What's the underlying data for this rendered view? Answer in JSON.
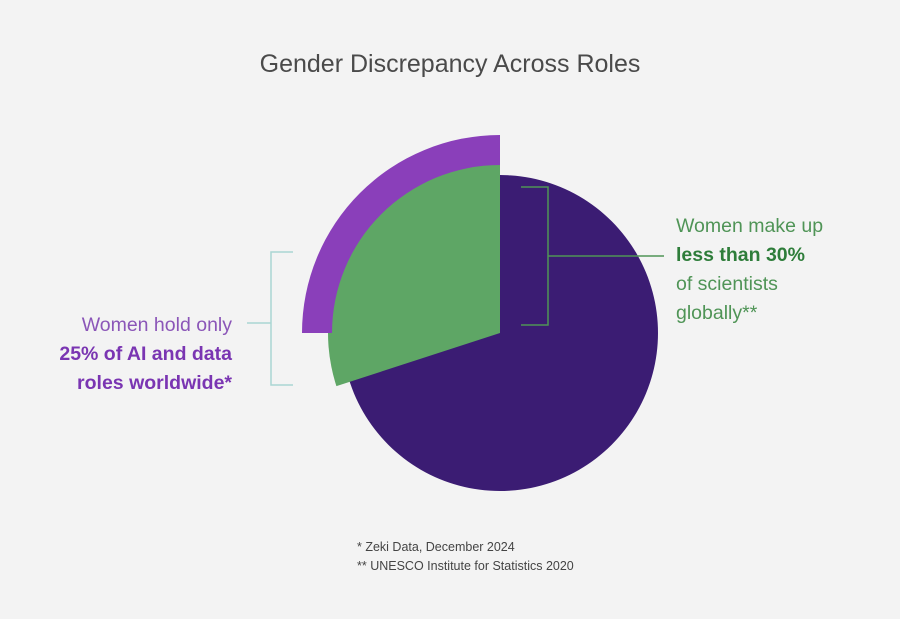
{
  "title": "Gender Discrepancy Across Roles",
  "colors": {
    "background": "#f3f3f3",
    "majority_segment": "#3b1c73",
    "women_scientists": "#5ea665",
    "women_ai_data": "#8a3fba",
    "bracket_left": "#a9d6d3",
    "bracket_right": "#4f9456"
  },
  "annotations": {
    "left": {
      "line1": "Women hold only",
      "line2": "25% of AI and data",
      "line3": "roles worldwide*"
    },
    "right": {
      "line1": "Women make up",
      "line2": "less than 30%",
      "line3": "of scientists",
      "line4": "globally**"
    }
  },
  "footnotes": {
    "note1": "* Zeki Data, December 2024",
    "note2": "** UNESCO Institute for Statistics 2020"
  },
  "chart_data": {
    "type": "pie",
    "title": "Gender Discrepancy Across Roles",
    "unit": "%",
    "rings": [
      {
        "name": "Women in AI and data roles",
        "value": 25,
        "source": "* Zeki Data, December 2024",
        "color": "#8a3fba"
      },
      {
        "name": "Women among scientists",
        "value": 30,
        "qualifier": "less than",
        "source": "** UNESCO Institute for Statistics 2020",
        "color": "#5ea665"
      }
    ],
    "remainder_color": "#3b1c73"
  }
}
